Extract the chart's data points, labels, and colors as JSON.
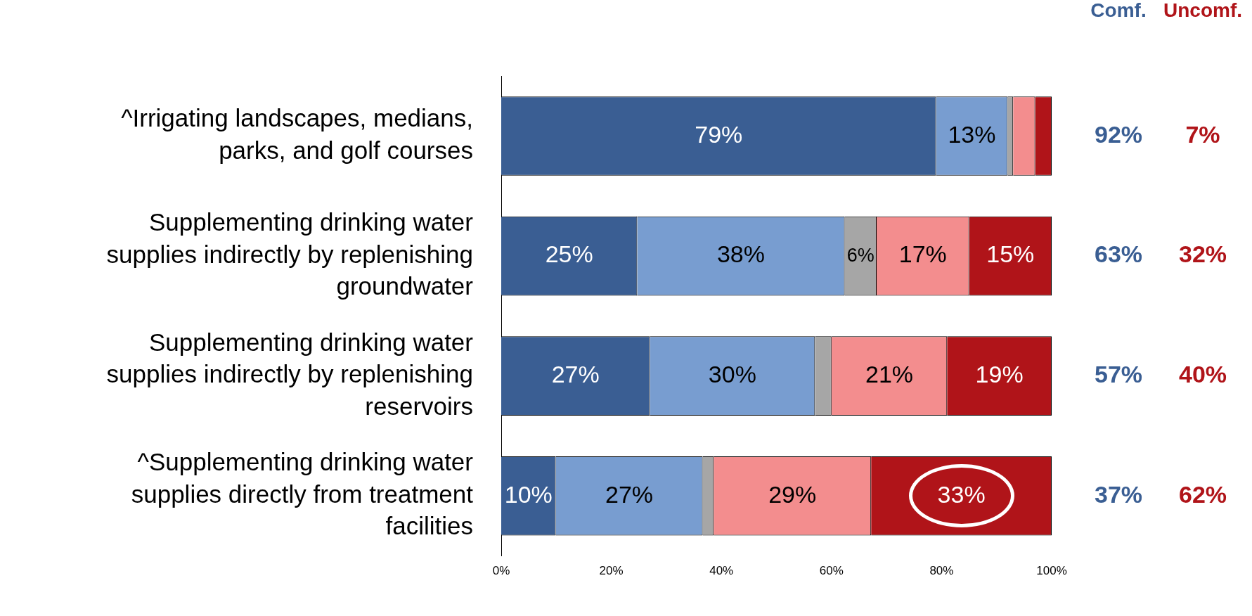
{
  "chart_data": {
    "type": "bar",
    "orientation": "horizontal",
    "stacked": true,
    "categories": [
      "^Irrigating landscapes, medians, parks, and golf courses",
      "Supplementing drinking water supplies indirectly by replenishing groundwater",
      "Supplementing drinking water supplies indirectly by replenishing reservoirs",
      "^Supplementing drinking water supplies directly from treatment facilities"
    ],
    "series": [
      {
        "color": "#3a5e93",
        "values": [
          79,
          24.7,
          27,
          9.9
        ],
        "value_labels": [
          "79%",
          "25%",
          "27%",
          "10%"
        ]
      },
      {
        "color": "#789dd0",
        "values": [
          13,
          37.7,
          30,
          26.7
        ],
        "value_labels": [
          "13%",
          "38%",
          "30%",
          "27%"
        ]
      },
      {
        "color": "#a6a6a6",
        "values": [
          1,
          5.8,
          3,
          2
        ],
        "value_labels": [
          null,
          "6%",
          null,
          null
        ]
      },
      {
        "color": "#f38d8e",
        "values": [
          4,
          16.8,
          21,
          28.6
        ],
        "value_labels": [
          null,
          "17%",
          "21%",
          "29%"
        ]
      },
      {
        "color": "#b01419",
        "values": [
          3,
          15,
          19,
          32.8
        ],
        "value_labels": [
          null,
          "15%",
          "19%",
          "33%"
        ]
      }
    ],
    "xlim": [
      0,
      100
    ],
    "xticks": [
      {
        "value": 0,
        "label": "0%"
      },
      {
        "value": 20,
        "label": "20%"
      },
      {
        "value": 40,
        "label": "40%"
      },
      {
        "value": 60,
        "label": "60%"
      },
      {
        "value": 80,
        "label": "80%"
      },
      {
        "value": 100,
        "label": "100%"
      }
    ],
    "grid": false,
    "legend": false,
    "annotations": [
      "Comf.",
      "Uncomf.",
      "92%",
      "7%",
      "63%",
      "32%",
      "57%",
      "40%",
      "37%",
      "62%"
    ]
  }
}
